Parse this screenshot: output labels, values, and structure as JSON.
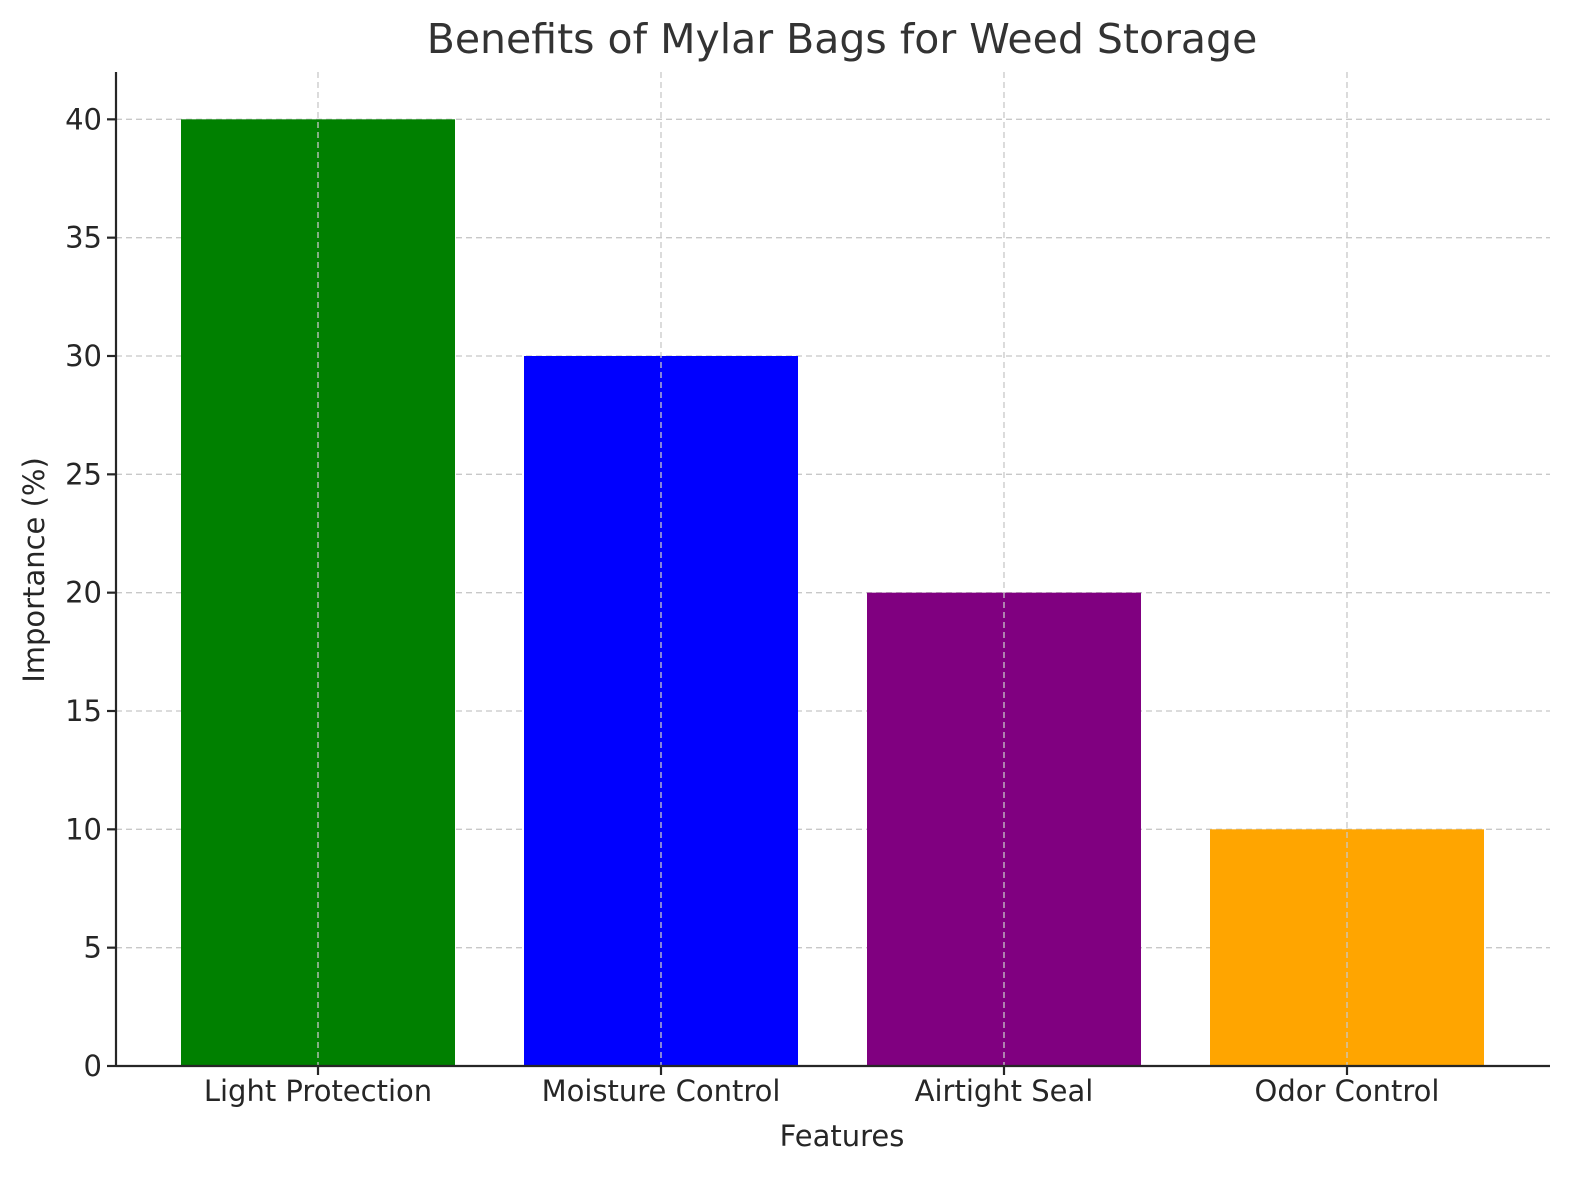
{
  "chart_data": {
    "type": "bar",
    "title": "Benefits of Mylar Bags for Weed Storage",
    "xlabel": "Features",
    "ylabel": "Importance (%)",
    "categories": [
      "Light Protection",
      "Moisture Control",
      "Airtight Seal",
      "Odor Control"
    ],
    "values": [
      40,
      30,
      20,
      10
    ],
    "colors": [
      "#008000",
      "#0000ff",
      "#800080",
      "#ffa500"
    ],
    "ylim": [
      0,
      42
    ],
    "yticks": [
      0,
      5,
      10,
      15,
      20,
      25,
      30,
      35,
      40
    ],
    "grid": true
  }
}
